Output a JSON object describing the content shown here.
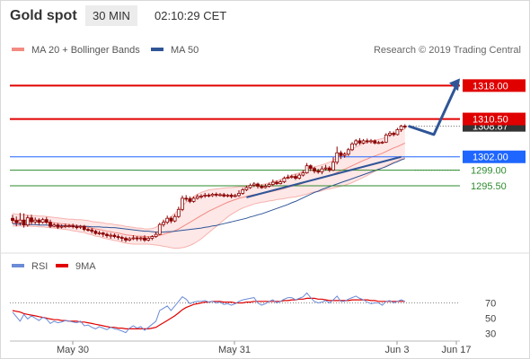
{
  "header": {
    "title": "Gold spot",
    "interval": "30 MIN",
    "time": "02:10:29 CET"
  },
  "legend": {
    "bollinger_label": "MA 20 + Bollinger Bands",
    "ma50_label": "MA 50",
    "copyright": "Research © 2019 Trading Central",
    "rsi_label": "RSI",
    "ma9_label": "9MA"
  },
  "colors": {
    "bollinger": "#f28b82",
    "band_fill": "#fde3e3",
    "ma50": "#2f5597",
    "candle": "#8b0000",
    "resistance": "#e00000",
    "pivot": "#1e66ff",
    "support": "#2e8b2e",
    "rsi": "#6b8bd6",
    "rsi_ma": "#e00000"
  },
  "chart_data": [
    {
      "type": "candlestick",
      "title": "Gold spot",
      "ylim": [
        1282.2,
        1321.9
      ],
      "x_labels": [
        "May 30",
        "May 31",
        "Jun 3",
        "Jun 17"
      ],
      "levels": [
        {
          "value": 1318.0,
          "label": "1318.00",
          "kind": "resistance"
        },
        {
          "value": 1310.5,
          "label": "1310.50",
          "kind": "resistance"
        },
        {
          "value": 1308.87,
          "label": "1308.87",
          "kind": "last"
        },
        {
          "value": 1302.0,
          "label": "1302.00",
          "kind": "pivot"
        },
        {
          "value": 1299.0,
          "label": "1299.00",
          "kind": "support"
        },
        {
          "value": 1295.5,
          "label": "1295.50",
          "kind": "support"
        }
      ],
      "forecast_path": [
        1308.9,
        1307.0,
        1318.0
      ],
      "candles": [
        [
          1288.2,
          1287.7,
          1289.0,
          1287.0
        ],
        [
          1287.7,
          1287.2,
          1288.6,
          1286.4
        ],
        [
          1287.2,
          1287.8,
          1289.4,
          1286.6
        ],
        [
          1287.8,
          1286.7,
          1289.3,
          1286.1
        ],
        [
          1286.7,
          1288.3,
          1288.9,
          1286.3
        ],
        [
          1288.3,
          1287.4,
          1289.0,
          1286.8
        ],
        [
          1287.4,
          1287.8,
          1288.4,
          1286.9
        ],
        [
          1287.8,
          1287.3,
          1288.2,
          1286.7
        ],
        [
          1287.3,
          1287.9,
          1288.3,
          1287.0
        ],
        [
          1287.9,
          1287.3,
          1288.5,
          1286.9
        ],
        [
          1287.3,
          1286.4,
          1287.9,
          1286.0
        ],
        [
          1286.4,
          1286.7,
          1287.1,
          1286.2
        ],
        [
          1286.7,
          1286.2,
          1287.1,
          1285.8
        ],
        [
          1286.2,
          1286.4,
          1286.8,
          1285.9
        ],
        [
          1286.4,
          1286.5,
          1287.0,
          1286.0
        ],
        [
          1286.5,
          1286.5,
          1286.9,
          1286.1
        ],
        [
          1286.5,
          1286.3,
          1287.0,
          1285.9
        ],
        [
          1286.3,
          1286.2,
          1286.8,
          1285.7
        ],
        [
          1286.2,
          1286.4,
          1286.7,
          1285.8
        ],
        [
          1286.4,
          1285.7,
          1286.7,
          1285.3
        ],
        [
          1285.7,
          1285.6,
          1286.1,
          1285.2
        ],
        [
          1285.6,
          1285.3,
          1286.0,
          1284.8
        ],
        [
          1285.3,
          1284.8,
          1285.6,
          1284.5
        ],
        [
          1284.8,
          1284.9,
          1285.4,
          1284.4
        ],
        [
          1284.9,
          1284.6,
          1285.2,
          1284.0
        ],
        [
          1284.6,
          1284.3,
          1285.0,
          1283.8
        ],
        [
          1284.3,
          1284.4,
          1284.9,
          1283.6
        ],
        [
          1284.4,
          1284.1,
          1284.8,
          1283.7
        ],
        [
          1284.1,
          1283.9,
          1284.6,
          1283.4
        ],
        [
          1283.9,
          1283.7,
          1284.3,
          1283.0
        ],
        [
          1283.7,
          1283.3,
          1284.1,
          1282.8
        ],
        [
          1283.3,
          1283.6,
          1284.0,
          1283.0
        ],
        [
          1283.6,
          1283.8,
          1284.4,
          1283.3
        ],
        [
          1283.8,
          1283.6,
          1284.2,
          1283.1
        ],
        [
          1283.6,
          1283.8,
          1284.1,
          1283.1
        ],
        [
          1283.8,
          1283.3,
          1284.4,
          1282.9
        ],
        [
          1283.3,
          1283.7,
          1284.1,
          1283.0
        ],
        [
          1283.7,
          1284.1,
          1284.4,
          1283.3
        ],
        [
          1284.1,
          1284.6,
          1285.2,
          1283.8
        ],
        [
          1284.6,
          1286.8,
          1287.2,
          1284.4
        ],
        [
          1286.8,
          1287.3,
          1287.9,
          1286.3
        ],
        [
          1287.3,
          1288.2,
          1288.8,
          1286.9
        ],
        [
          1288.2,
          1287.6,
          1288.6,
          1287.1
        ],
        [
          1287.6,
          1288.6,
          1289.1,
          1287.3
        ],
        [
          1288.6,
          1290.2,
          1290.8,
          1288.3
        ],
        [
          1290.2,
          1292.7,
          1293.3,
          1289.8
        ],
        [
          1292.7,
          1292.6,
          1293.4,
          1292.0
        ],
        [
          1292.6,
          1292.0,
          1293.1,
          1291.6
        ],
        [
          1292.0,
          1292.7,
          1293.1,
          1291.7
        ],
        [
          1292.7,
          1293.1,
          1293.6,
          1292.4
        ],
        [
          1293.1,
          1293.2,
          1293.6,
          1292.6
        ],
        [
          1293.2,
          1293.4,
          1293.9,
          1292.8
        ],
        [
          1293.4,
          1293.3,
          1293.8,
          1292.9
        ],
        [
          1293.3,
          1293.6,
          1293.9,
          1293.0
        ],
        [
          1293.6,
          1293.4,
          1294.0,
          1293.0
        ],
        [
          1293.4,
          1293.5,
          1293.9,
          1293.1
        ],
        [
          1293.5,
          1293.2,
          1293.9,
          1292.9
        ],
        [
          1293.2,
          1293.4,
          1293.7,
          1292.9
        ],
        [
          1293.4,
          1293.1,
          1293.8,
          1292.7
        ],
        [
          1293.1,
          1293.3,
          1293.7,
          1292.9
        ],
        [
          1293.3,
          1293.8,
          1294.5,
          1293.0
        ],
        [
          1293.8,
          1294.6,
          1295.0,
          1293.5
        ],
        [
          1294.6,
          1295.1,
          1295.6,
          1294.3
        ],
        [
          1295.1,
          1295.6,
          1296.0,
          1294.8
        ],
        [
          1295.6,
          1295.9,
          1296.3,
          1295.2
        ],
        [
          1295.9,
          1295.4,
          1296.2,
          1294.9
        ],
        [
          1295.4,
          1295.1,
          1295.8,
          1294.8
        ],
        [
          1295.1,
          1295.4,
          1295.9,
          1294.9
        ],
        [
          1295.4,
          1295.8,
          1296.2,
          1295.1
        ],
        [
          1295.8,
          1296.3,
          1296.9,
          1295.4
        ],
        [
          1296.3,
          1296.0,
          1296.7,
          1295.7
        ],
        [
          1296.0,
          1296.4,
          1296.8,
          1295.8
        ],
        [
          1296.4,
          1297.2,
          1297.6,
          1296.1
        ],
        [
          1297.2,
          1297.4,
          1298.0,
          1297.0
        ],
        [
          1297.4,
          1297.6,
          1298.0,
          1297.1
        ],
        [
          1297.6,
          1297.2,
          1298.1,
          1296.8
        ],
        [
          1297.2,
          1297.9,
          1298.3,
          1296.9
        ],
        [
          1297.9,
          1298.4,
          1299.0,
          1297.6
        ],
        [
          1298.4,
          1300.0,
          1300.6,
          1298.2
        ],
        [
          1300.0,
          1299.4,
          1300.3,
          1298.8
        ],
        [
          1299.4,
          1298.8,
          1299.8,
          1298.3
        ],
        [
          1298.8,
          1298.6,
          1299.3,
          1298.2
        ],
        [
          1298.6,
          1299.3,
          1299.9,
          1298.1
        ],
        [
          1299.3,
          1299.5,
          1300.2,
          1298.9
        ],
        [
          1299.5,
          1299.0,
          1299.9,
          1298.6
        ],
        [
          1299.0,
          1300.8,
          1301.9,
          1298.8
        ],
        [
          1300.8,
          1302.9,
          1304.3,
          1300.3
        ],
        [
          1302.9,
          1302.3,
          1303.4,
          1301.5
        ],
        [
          1302.3,
          1302.6,
          1303.0,
          1301.8
        ],
        [
          1302.6,
          1303.6,
          1304.0,
          1302.2
        ],
        [
          1303.6,
          1304.9,
          1305.3,
          1303.3
        ],
        [
          1304.9,
          1305.6,
          1306.0,
          1304.4
        ],
        [
          1305.6,
          1305.1,
          1306.2,
          1304.7
        ],
        [
          1305.1,
          1305.6,
          1306.0,
          1304.8
        ],
        [
          1305.6,
          1305.4,
          1306.1,
          1305.0
        ],
        [
          1305.4,
          1305.6,
          1306.0,
          1305.0
        ],
        [
          1305.6,
          1305.1,
          1305.9,
          1304.8
        ],
        [
          1305.1,
          1305.2,
          1305.6,
          1304.9
        ],
        [
          1305.2,
          1305.3,
          1305.6,
          1304.9
        ],
        [
          1305.3,
          1306.9,
          1307.3,
          1305.1
        ],
        [
          1306.9,
          1307.3,
          1307.8,
          1306.5
        ],
        [
          1307.3,
          1307.0,
          1307.7,
          1306.6
        ],
        [
          1307.0,
          1308.1,
          1308.5,
          1306.8
        ],
        [
          1308.1,
          1308.9,
          1309.2,
          1307.6
        ],
        [
          1308.9,
          1308.8,
          1309.3,
          1308.3
        ]
      ],
      "ma20": [
        1287.9,
        1287.8,
        1287.8,
        1287.7,
        1287.7,
        1287.6,
        1287.6,
        1287.5,
        1287.5,
        1287.4,
        1287.3,
        1287.2,
        1287.1,
        1287.0,
        1286.9,
        1286.8,
        1286.7,
        1286.6,
        1286.5,
        1286.4,
        1286.2,
        1286.0,
        1285.8,
        1285.7,
        1285.5,
        1285.3,
        1285.2,
        1285.0,
        1284.9,
        1284.7,
        1284.5,
        1284.4,
        1284.3,
        1284.2,
        1284.2,
        1284.1,
        1284.1,
        1284.1,
        1284.2,
        1284.4,
        1284.6,
        1284.9,
        1285.1,
        1285.4,
        1285.8,
        1286.3,
        1286.8,
        1287.3,
        1287.8,
        1288.3,
        1288.8,
        1289.3,
        1289.8,
        1290.2,
        1290.6,
        1291.0,
        1291.4,
        1291.8,
        1292.1,
        1292.4,
        1292.7,
        1292.9,
        1293.1,
        1293.3,
        1293.5,
        1293.6,
        1293.8,
        1293.9,
        1294.1,
        1294.3,
        1294.5,
        1294.7,
        1294.9,
        1295.2,
        1295.4,
        1295.6,
        1295.8,
        1296.1,
        1296.4,
        1296.7,
        1296.9,
        1297.1,
        1297.3,
        1297.6,
        1297.8,
        1298.1,
        1298.5,
        1298.9,
        1299.2,
        1299.6,
        1300.0,
        1300.4,
        1300.8,
        1301.2,
        1301.5,
        1301.9,
        1302.2,
        1302.5,
        1302.8,
        1303.2,
        1303.6,
        1304.0,
        1304.3,
        1304.7,
        1305.1
      ],
      "band_width": [
        1.4,
        1.3,
        1.3,
        1.3,
        1.2,
        1.2,
        1.2,
        1.2,
        1.2,
        1.2,
        1.2,
        1.2,
        1.2,
        1.2,
        1.2,
        1.2,
        1.3,
        1.3,
        1.4,
        1.4,
        1.5,
        1.5,
        1.6,
        1.6,
        1.7,
        1.7,
        1.8,
        1.8,
        1.8,
        1.9,
        1.9,
        1.9,
        1.9,
        1.8,
        1.8,
        1.7,
        1.7,
        1.8,
        2.0,
        2.3,
        2.7,
        3.1,
        3.5,
        3.9,
        4.3,
        4.7,
        5.0,
        5.2,
        5.3,
        5.3,
        5.2,
        5.0,
        4.8,
        4.5,
        4.2,
        3.9,
        3.6,
        3.3,
        3.0,
        2.8,
        2.6,
        2.4,
        2.3,
        2.2,
        2.1,
        2.0,
        2.0,
        2.0,
        2.0,
        2.1,
        2.1,
        2.2,
        2.3,
        2.4,
        2.5,
        2.6,
        2.6,
        2.7,
        2.8,
        2.8,
        2.8,
        2.9,
        2.9,
        2.9,
        3.0,
        3.1,
        3.3,
        3.5,
        3.6,
        3.7,
        3.8,
        3.8,
        3.8,
        3.8,
        3.7,
        3.6,
        3.5,
        3.4,
        3.3,
        3.2,
        3.2,
        3.2,
        3.2,
        3.2,
        3.2
      ],
      "ma50": [
        1287.0,
        1286.9,
        1286.9,
        1286.9,
        1286.8,
        1286.8,
        1286.8,
        1286.7,
        1286.7,
        1286.7,
        1286.6,
        1286.6,
        1286.6,
        1286.6,
        1286.5,
        1286.5,
        1286.5,
        1286.4,
        1286.4,
        1286.4,
        1286.4,
        1286.3,
        1286.3,
        1286.3,
        1286.2,
        1286.2,
        1286.1,
        1286.1,
        1286.0,
        1285.9,
        1285.8,
        1285.7,
        1285.6,
        1285.5,
        1285.4,
        1285.3,
        1285.3,
        1285.2,
        1285.1,
        1285.1,
        1285.1,
        1285.2,
        1285.2,
        1285.3,
        1285.4,
        1285.5,
        1285.6,
        1285.7,
        1285.8,
        1285.9,
        1286.0,
        1286.2,
        1286.3,
        1286.5,
        1286.6,
        1286.8,
        1287.0,
        1287.2,
        1287.4,
        1287.6,
        1287.8,
        1288.0,
        1288.2,
        1288.5,
        1288.7,
        1289.0,
        1289.2,
        1289.5,
        1289.8,
        1290.1,
        1290.4,
        1290.7,
        1291.0,
        1291.3,
        1291.7,
        1292.0,
        1292.4,
        1292.8,
        1293.2,
        1293.6,
        1294.0,
        1294.3,
        1294.7,
        1295.0,
        1295.3,
        1295.6,
        1295.9,
        1296.2,
        1296.5,
        1296.8,
        1297.1,
        1297.4,
        1297.7,
        1298.0,
        1298.3,
        1298.6,
        1298.9,
        1299.2,
        1299.5,
        1299.8,
        1300.2,
        1300.6,
        1300.9,
        1301.3,
        1301.6
      ],
      "trendline": {
        "from_index": 62,
        "from_value": 1292.9,
        "to_index": 103,
        "to_value": 1302.0
      }
    },
    {
      "type": "line",
      "title": "RSI",
      "ylim": [
        20,
        100
      ],
      "yticks": [
        30,
        50,
        70
      ],
      "overbought": 70,
      "series": [
        {
          "name": "RSI",
          "values": [
            58,
            52,
            46,
            55,
            49,
            53,
            50,
            47,
            51,
            49,
            43,
            46,
            44,
            45,
            47,
            46,
            45,
            44,
            46,
            40,
            41,
            38,
            36,
            39,
            37,
            35,
            38,
            36,
            35,
            33,
            31,
            37,
            40,
            37,
            39,
            34,
            38,
            42,
            46,
            60,
            63,
            66,
            60,
            66,
            72,
            78,
            75,
            69,
            71,
            72,
            72,
            73,
            71,
            72,
            70,
            71,
            68,
            69,
            67,
            69,
            72,
            74,
            75,
            76,
            77,
            70,
            67,
            69,
            72,
            74,
            70,
            72,
            75,
            77,
            77,
            74,
            76,
            78,
            83,
            77,
            72,
            70,
            71,
            73,
            70,
            74,
            79,
            72,
            72,
            75,
            77,
            79,
            76,
            74,
            71,
            69,
            70,
            70,
            67,
            72,
            73,
            70,
            72,
            74,
            72
          ]
        },
        {
          "name": "9MA",
          "values": [
            60,
            59,
            58,
            56,
            55,
            54,
            53,
            52,
            51,
            50,
            49,
            48,
            48,
            47,
            47,
            46,
            46,
            46,
            45,
            45,
            44,
            43,
            42,
            41,
            40,
            39,
            38,
            38,
            37,
            37,
            36,
            36,
            36,
            36,
            36,
            36,
            36,
            37,
            38,
            41,
            44,
            47,
            50,
            53,
            57,
            61,
            64,
            66,
            68,
            69,
            70,
            71,
            71,
            72,
            72,
            72,
            71,
            71,
            71,
            70,
            70,
            70,
            71,
            71,
            72,
            72,
            72,
            72,
            72,
            72,
            72,
            72,
            73,
            73,
            74,
            74,
            75,
            75,
            76,
            76,
            76,
            75,
            75,
            74,
            73,
            73,
            73,
            73,
            73,
            73,
            74,
            74,
            74,
            74,
            74,
            73,
            73,
            72,
            72,
            72,
            72,
            72,
            72,
            72,
            72
          ]
        }
      ]
    }
  ]
}
